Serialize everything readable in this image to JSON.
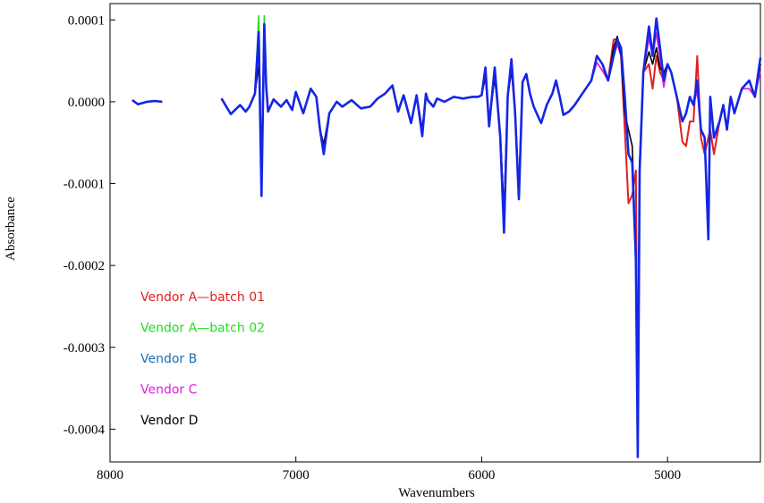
{
  "chart_data": {
    "type": "line",
    "title": "",
    "xlabel": "Wavenumbers",
    "ylabel": "Absorbance",
    "xlim": [
      8000,
      4500
    ],
    "x_reversed": true,
    "ylim": [
      -0.00044,
      0.00012
    ],
    "x_ticks": [
      8000,
      7000,
      6000,
      5000
    ],
    "x_tick_labels": [
      "8000",
      "7000",
      "6000",
      "5000"
    ],
    "y_ticks": [
      0.0001,
      0.0,
      -0.0001,
      -0.0002,
      -0.0003,
      -0.0004
    ],
    "y_tick_labels": [
      "0.0001",
      "0.0000",
      "-0.0001",
      "-0.0002",
      "-0.0003",
      "-0.0004"
    ],
    "grid": false,
    "legend_position": "left",
    "series": [
      {
        "name": "Vendor A—batch 01",
        "color": "#e0201c"
      },
      {
        "name": "Vendor A—batch 02",
        "color": "#22dd22"
      },
      {
        "name": "Vendor B",
        "color": "#1b6fb5"
      },
      {
        "name": "Vendor C",
        "color": "#e020e0"
      },
      {
        "name": "Vendor D",
        "color": "#000000"
      }
    ],
    "x": [
      7880,
      7850,
      7800,
      7760,
      7720,
      7400,
      7350,
      7300,
      7270,
      7250,
      7220,
      7200,
      7185,
      7170,
      7160,
      7150,
      7120,
      7080,
      7050,
      7020,
      7000,
      6960,
      6920,
      6890,
      6870,
      6850,
      6820,
      6780,
      6750,
      6700,
      6650,
      6600,
      6560,
      6520,
      6480,
      6450,
      6420,
      6380,
      6350,
      6320,
      6300,
      6290,
      6260,
      6240,
      6200,
      6150,
      6100,
      6050,
      6020,
      6000,
      5980,
      5960,
      5930,
      5900,
      5880,
      5860,
      5840,
      5820,
      5800,
      5780,
      5760,
      5740,
      5720,
      5700,
      5680,
      5650,
      5620,
      5600,
      5580,
      5560,
      5530,
      5500,
      5470,
      5440,
      5410,
      5380,
      5350,
      5320,
      5290,
      5270,
      5250,
      5230,
      5210,
      5190,
      5170,
      5160,
      5150,
      5130,
      5100,
      5080,
      5060,
      5040,
      5020,
      5000,
      4980,
      4950,
      4920,
      4900,
      4880,
      4860,
      4840,
      4820,
      4800,
      4780,
      4770,
      4750,
      4720,
      4700,
      4680,
      4660,
      4640,
      4600,
      4560,
      4530,
      4500
    ],
    "ref_values": [
      2e-06,
      -3e-06,
      0.0,
      1e-06,
      0.0,
      4e-06,
      -1.5e-05,
      -4e-06,
      -1.2e-05,
      -6e-06,
      1e-05,
      8.5e-05,
      -0.0001,
      9.5e-05,
      2e-05,
      -1.2e-05,
      3e-06,
      -6e-06,
      2e-06,
      -1e-05,
      1.2e-05,
      -1.4e-05,
      1.6e-05,
      6e-06,
      -3.4e-05,
      -6e-05,
      -1.4e-05,
      0.0,
      -6e-06,
      2e-06,
      -8e-06,
      -6e-06,
      4e-06,
      1e-05,
      2e-05,
      -1.2e-05,
      8e-06,
      -2.6e-05,
      8e-06,
      -3.8e-05,
      1e-05,
      2e-06,
      -6e-06,
      4e-06,
      0.0,
      6e-06,
      4e-06,
      6e-06,
      6e-06,
      8e-06,
      3.6e-05,
      -2.6e-05,
      3.6e-05,
      -4e-05,
      -0.000145,
      6e-06,
      4.6e-05,
      -1.4e-05,
      -0.000115,
      2.4e-05,
      3.4e-05,
      1e-05,
      -6e-06,
      -1.6e-05,
      -2.6e-05,
      -4e-06,
      1e-05,
      2.6e-05,
      6e-06,
      -1.6e-05,
      -1.2e-05,
      -4e-06,
      6e-06,
      1.6e-05,
      2.6e-05,
      5.6e-05,
      4.6e-05,
      2.6e-05,
      5.6e-05,
      7.6e-05,
      6.6e-05,
      6e-06,
      -6.4e-05,
      -7.4e-05,
      -0.000194,
      -0.000424,
      -8.4e-05,
      3.6e-05,
      8.6e-05,
      5.6e-05,
      9.6e-05,
      6.6e-05,
      2.6e-05,
      4.6e-05,
      3.6e-05,
      6e-06,
      -2.4e-05,
      -1.4e-05,
      6e-06,
      -4e-06,
      2.6e-05,
      -3.4e-05,
      -4.4e-05,
      -0.000164,
      6e-06,
      -4.4e-05,
      -2.4e-05,
      -4e-06,
      -3.4e-05,
      6e-06,
      -1.4e-05,
      1.6e-05,
      2.6e-05,
      6e-06,
      4.6e-05
    ],
    "series_offsets": [
      [
        0,
        0,
        0,
        0,
        0,
        0,
        0,
        0,
        0,
        0,
        0,
        0,
        0,
        0,
        0,
        0,
        0,
        0,
        0,
        0,
        0,
        0,
        0,
        0,
        0,
        0,
        0,
        0,
        0,
        0,
        0,
        0,
        0,
        0,
        0,
        0,
        0,
        0,
        0,
        0,
        0,
        0,
        0,
        0,
        0,
        0,
        0,
        0,
        0,
        0,
        0,
        0,
        0,
        0,
        0,
        0,
        0,
        0,
        0,
        0,
        0,
        0,
        0,
        0,
        0,
        0,
        0,
        0,
        0,
        0,
        0,
        0,
        0,
        0,
        0,
        0,
        0,
        0,
        2e-05,
        0,
        -1e-05,
        -4e-05,
        -6e-05,
        -4e-05,
        0.00011,
        0,
        0,
        0,
        -4e-05,
        -4e-05,
        -4e-05,
        -3e-05,
        0,
        0,
        0,
        0,
        -2.5e-05,
        -4e-05,
        -3e-05,
        -2e-05,
        3e-05,
        -1e-05,
        -2e-05,
        0.00012,
        -4e-05,
        -2e-05,
        0,
        0,
        0,
        0,
        0,
        0,
        0,
        0,
        0
      ],
      [
        0,
        0,
        0,
        0,
        0,
        0,
        0,
        0,
        0,
        0,
        0,
        2e-05,
        0,
        1e-05,
        0,
        0,
        0,
        0,
        0,
        0,
        0,
        0,
        0,
        0,
        0,
        0,
        0,
        0,
        0,
        0,
        0,
        0,
        0,
        0,
        0,
        0,
        0,
        0,
        0,
        0,
        0,
        0,
        0,
        0,
        0,
        0,
        0,
        0,
        0,
        0,
        0,
        0,
        0,
        0,
        0,
        0,
        0,
        0,
        0,
        0,
        0,
        0,
        0,
        0,
        0,
        0,
        0,
        0,
        0,
        0,
        0,
        0,
        0,
        0,
        0,
        0,
        0,
        0,
        0,
        0,
        0,
        0,
        0,
        0,
        0,
        0,
        0,
        0,
        0,
        0,
        0,
        0,
        0,
        0,
        0,
        0,
        0,
        0,
        0,
        0,
        0,
        0,
        0,
        0,
        0,
        0,
        0,
        0,
        0,
        0,
        0,
        0,
        0,
        0,
        0
      ],
      [
        0,
        0,
        0,
        0,
        0,
        0,
        0,
        0,
        0,
        0,
        0,
        0,
        -1.5e-05,
        0,
        0,
        0,
        0,
        0,
        0,
        0,
        0,
        0,
        0,
        0,
        0,
        -4e-06,
        0,
        0,
        0,
        0,
        0,
        0,
        0,
        0,
        0,
        0,
        0,
        0,
        0,
        -4e-06,
        0,
        0,
        0,
        0,
        0,
        0,
        0,
        0,
        0,
        0,
        6e-06,
        -4e-06,
        6e-06,
        -4e-06,
        -1.5e-05,
        0,
        6e-06,
        0,
        -4e-06,
        0,
        0,
        0,
        0,
        0,
        0,
        0,
        0,
        0,
        0,
        0,
        0,
        0,
        0,
        0,
        0,
        0,
        0,
        0,
        0,
        0,
        0,
        0,
        0,
        0,
        0,
        -1e-05,
        0,
        0,
        6e-06,
        0,
        6e-06,
        0,
        0,
        0,
        0,
        0,
        0,
        0,
        0,
        0,
        0,
        0,
        0,
        -4e-06,
        0,
        0,
        0,
        0,
        0,
        0,
        0,
        0,
        0,
        0,
        8e-06
      ],
      [
        0,
        0,
        0,
        0,
        0,
        0,
        0,
        0,
        0,
        0,
        0,
        -1e-05,
        1.2e-05,
        -1e-05,
        0,
        0,
        0,
        0,
        0,
        0,
        0,
        0,
        0,
        0,
        0,
        6e-06,
        0,
        0,
        0,
        0,
        0,
        0,
        0,
        0,
        0,
        0,
        0,
        0,
        0,
        4e-06,
        0,
        0,
        0,
        0,
        0,
        0,
        0,
        0,
        0,
        0,
        -4e-06,
        0,
        -6e-06,
        0,
        6e-06,
        0,
        -8e-06,
        0,
        6e-06,
        0,
        0,
        0,
        0,
        0,
        0,
        0,
        0,
        0,
        0,
        0,
        0,
        0,
        0,
        0,
        0,
        -8e-06,
        -8e-06,
        0,
        0,
        -6e-06,
        -1e-05,
        -6e-06,
        0,
        0,
        4e-06,
        2e-05,
        0,
        0,
        -8e-06,
        0,
        -1.2e-05,
        -1.2e-05,
        -8e-06,
        0,
        0,
        0,
        0,
        0,
        0,
        0,
        -1.2e-05,
        0,
        0,
        8e-06,
        0,
        0,
        0,
        0,
        0,
        0,
        0,
        0,
        -1e-05,
        0,
        -8e-06
      ],
      [
        0,
        0,
        0,
        0,
        0,
        0,
        0,
        0,
        0,
        0,
        0,
        -4e-05,
        3e-05,
        -3e-05,
        0,
        0,
        0,
        0,
        0,
        0,
        0,
        0,
        0,
        0,
        0,
        8e-06,
        0,
        0,
        0,
        0,
        0,
        0,
        0,
        0,
        0,
        0,
        0,
        0,
        0,
        4e-06,
        0,
        0,
        0,
        0,
        0,
        0,
        0,
        0,
        0,
        0,
        -6e-06,
        0,
        -6e-06,
        0,
        1.2e-05,
        0,
        -6e-06,
        0,
        1e-05,
        0,
        0,
        0,
        0,
        0,
        0,
        0,
        0,
        0,
        0,
        0,
        0,
        0,
        0,
        0,
        0,
        0,
        0,
        0,
        1e-05,
        4e-06,
        -1e-05,
        -2e-05,
        3e-05,
        2e-05,
        1e-05,
        0.0001,
        1e-05,
        0,
        -2.5e-05,
        -1e-05,
        -3e-05,
        -2.5e-05,
        1e-05,
        0,
        0,
        0,
        0,
        0,
        0,
        0,
        0,
        0,
        0,
        1e-05,
        0,
        0,
        0,
        0,
        0,
        0,
        0,
        0,
        0,
        0,
        0
      ]
    ]
  }
}
